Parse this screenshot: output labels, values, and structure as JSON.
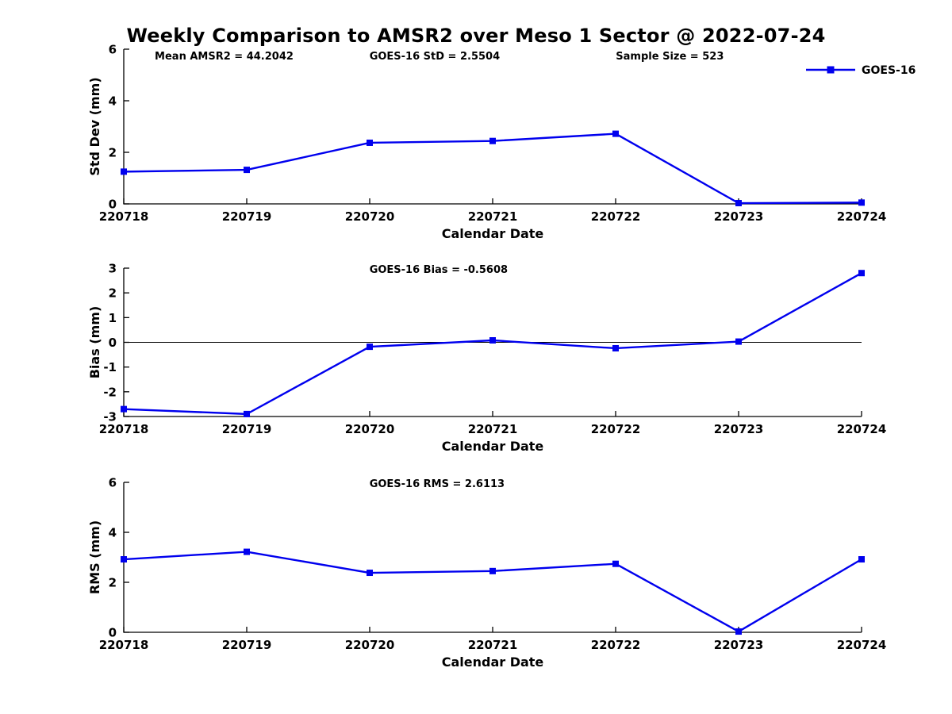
{
  "figure": {
    "title": "Weekly Comparison to AMSR2 over Meso 1 Sector @ 2022-07-24",
    "background": "#ffffff",
    "line_color": "#0000EE",
    "axis_color": "#000000"
  },
  "legend": {
    "label": "GOES-16",
    "position": "top-right"
  },
  "chart_data": [
    {
      "type": "line",
      "panel": "std-dev",
      "ylabel": "Std Dev (mm)",
      "xlabel": "Calendar Date",
      "ylim": [
        0,
        6
      ],
      "yticks": [
        0,
        2,
        4,
        6
      ],
      "x": [
        "220718",
        "220719",
        "220720",
        "220721",
        "220722",
        "220723",
        "220724"
      ],
      "series": [
        {
          "name": "GOES-16",
          "values": [
            1.25,
            1.32,
            2.37,
            2.44,
            2.72,
            0.03,
            0.05
          ]
        }
      ],
      "annotations": [
        "Mean AMSR2 = 44.2042",
        "GOES-16 StD = 2.5504",
        "Sample Size = 523"
      ],
      "grid": false,
      "zero_line": false,
      "legend": "GOES-16"
    },
    {
      "type": "line",
      "panel": "bias",
      "ylabel": "Bias (mm)",
      "xlabel": "Calendar Date",
      "ylim": [
        -3,
        3
      ],
      "yticks": [
        3,
        2,
        1,
        0,
        -1,
        -2,
        -3
      ],
      "x": [
        "220718",
        "220719",
        "220720",
        "220721",
        "220722",
        "220723",
        "220724"
      ],
      "series": [
        {
          "name": "GOES-16",
          "values": [
            -2.7,
            -2.9,
            -0.18,
            0.08,
            -0.24,
            0.03,
            2.8
          ]
        }
      ],
      "annotations": [
        "GOES-16 Bias  = -0.5608"
      ],
      "grid": false,
      "zero_line": true
    },
    {
      "type": "line",
      "panel": "rms",
      "ylabel": "RMS (mm)",
      "xlabel": "Calendar Date",
      "ylim": [
        0,
        6
      ],
      "yticks": [
        0,
        2,
        4,
        6
      ],
      "x": [
        "220718",
        "220719",
        "220720",
        "220721",
        "220722",
        "220723",
        "220724"
      ],
      "series": [
        {
          "name": "GOES-16",
          "values": [
            2.92,
            3.22,
            2.38,
            2.45,
            2.74,
            0.03,
            2.92
          ]
        }
      ],
      "annotations": [
        "GOES-16 RMS = 2.6113"
      ],
      "grid": false,
      "zero_line": false
    }
  ]
}
